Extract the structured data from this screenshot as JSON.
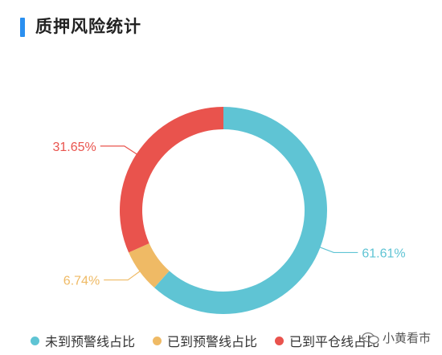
{
  "header": {
    "title": "质押风险统计"
  },
  "chart_data": {
    "type": "pie",
    "donut": true,
    "slices": [
      {
        "label": "未到预警线占比",
        "value": 61.61,
        "display": "61.61%",
        "color": "#5fc4d4"
      },
      {
        "label": "已到预警线占比",
        "value": 6.74,
        "display": "6.74%",
        "color": "#efba65"
      },
      {
        "label": "已到平仓线占比",
        "value": 31.65,
        "display": "31.65%",
        "color": "#e9534d"
      }
    ],
    "start_angle_deg": 0,
    "direction": "clockwise",
    "legend": "bottom"
  },
  "watermark": {
    "text": "小黄看市"
  }
}
